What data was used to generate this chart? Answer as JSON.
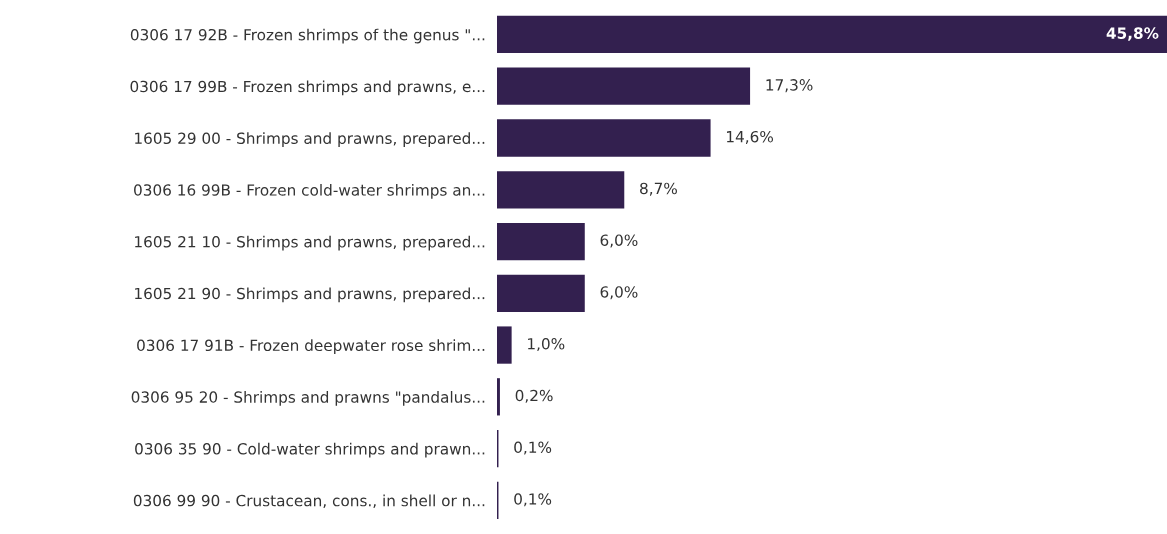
{
  "chart_data": {
    "type": "bar",
    "orientation": "horizontal",
    "tick_labels": "y",
    "categories": [
      "0306 17 92B - Frozen shrimps of the genus \"...",
      "0306 17 99B - Frozen shrimps and prawns, e...",
      "1605 29 00 - Shrimps and prawns, prepared...",
      "0306 16 99B - Frozen cold-water shrimps an...",
      "1605 21 10 - Shrimps and prawns, prepared...",
      "1605 21 90 - Shrimps and prawns, prepared...",
      "0306 17 91B - Frozen deepwater rose shrim...",
      "0306 95 20 - Shrimps and prawns \"pandalus...",
      "0306 35 90 - Cold-water shrimps and prawn...",
      "0306 99 90 - Crustacean, cons., in shell or n..."
    ],
    "values": [
      45.8,
      17.3,
      14.6,
      8.7,
      6.0,
      6.0,
      1.0,
      0.2,
      0.1,
      0.1
    ],
    "value_labels": [
      "45,8%",
      "17,3%",
      "14,6%",
      "8,7%",
      "6,0%",
      "6,0%",
      "1,0%",
      "0,2%",
      "0,1%",
      "0,1%"
    ],
    "color": "#33204f"
  }
}
